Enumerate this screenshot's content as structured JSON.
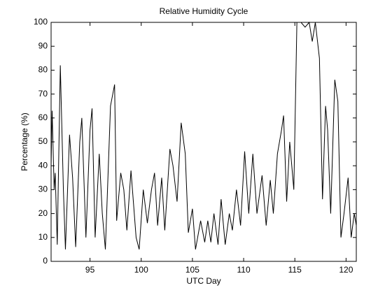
{
  "chart_data": {
    "type": "line",
    "title": "Relative Humidity Cycle",
    "x_label": "UTC Day",
    "y_label": "Percentage (%)",
    "x": [
      91.2,
      91.3,
      91.5,
      91.6,
      91.8,
      92.1,
      92.4,
      92.6,
      93.0,
      93.3,
      93.6,
      94.0,
      94.2,
      94.6,
      95.0,
      95.2,
      95.5,
      95.9,
      96.2,
      96.5,
      97.0,
      97.4,
      97.6,
      98.0,
      98.3,
      98.6,
      99.0,
      99.5,
      99.8,
      100.2,
      100.6,
      101.0,
      101.3,
      101.6,
      102.0,
      102.3,
      102.8,
      103.1,
      103.5,
      103.9,
      104.3,
      104.6,
      105.0,
      105.3,
      105.8,
      106.2,
      106.5,
      106.8,
      107.1,
      107.5,
      107.8,
      108.2,
      108.6,
      108.9,
      109.3,
      109.7,
      110.1,
      110.5,
      110.9,
      111.3,
      111.8,
      112.2,
      112.6,
      112.9,
      113.3,
      113.7,
      113.9,
      114.2,
      114.5,
      114.9,
      115.2,
      115.6,
      116.0,
      116.4,
      116.7,
      117.0,
      117.4,
      117.7,
      118.0,
      118.2,
      118.5,
      118.9,
      119.2,
      119.5,
      119.8,
      120.2,
      120.5,
      120.8,
      121.0
    ],
    "series": [
      {
        "name": "Relative Humidity",
        "color": "#000000",
        "values": [
          40,
          63,
          30,
          37,
          7,
          82,
          30,
          5,
          53,
          35,
          6,
          50,
          60,
          10,
          55,
          64,
          10,
          45,
          20,
          5,
          65,
          74,
          17,
          37,
          30,
          13,
          38,
          10,
          5,
          30,
          16,
          30,
          37,
          15,
          35,
          13,
          47,
          40,
          25,
          58,
          45,
          12,
          22,
          5,
          17,
          8,
          17,
          8,
          20,
          7,
          26,
          7,
          20,
          13,
          30,
          15,
          46,
          20,
          45,
          20,
          36,
          15,
          34,
          20,
          45,
          55,
          61,
          25,
          50,
          30,
          100,
          100,
          98,
          100,
          92,
          100,
          85,
          26,
          65,
          55,
          20,
          76,
          67,
          10,
          20,
          35,
          10,
          20,
          15
        ]
      }
    ],
    "xlim": [
      91.2,
      121
    ],
    "xticks": [
      95,
      100,
      105,
      110,
      115,
      120
    ],
    "ylim": [
      0,
      100
    ],
    "yticks": [
      0,
      10,
      20,
      30,
      40,
      50,
      60,
      70,
      80,
      90,
      100
    ]
  }
}
